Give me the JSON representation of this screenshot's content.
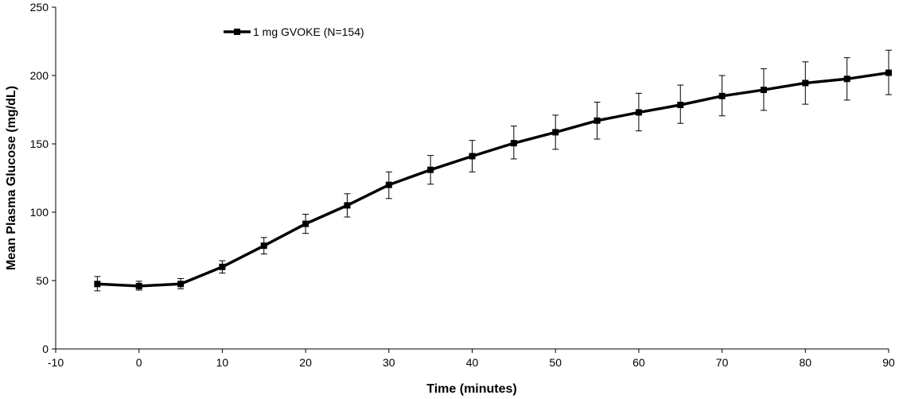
{
  "chart_data": {
    "type": "line",
    "title": "",
    "xlabel": "Time (minutes)",
    "ylabel": "Mean Plasma Glucose (mg/dL)",
    "xlim": [
      -10,
      90
    ],
    "ylim": [
      0,
      250
    ],
    "xticks": [
      "-10",
      "0",
      "10",
      "20",
      "30",
      "40",
      "50",
      "60",
      "70",
      "80",
      "90"
    ],
    "yticks": [
      "0",
      "50",
      "100",
      "150",
      "200",
      "250"
    ],
    "grid": false,
    "legend_position": "top-left",
    "series": [
      {
        "name": "1 mg GVOKE (N=154)",
        "color": "#000000",
        "marker": "square",
        "x": [
          -5,
          0,
          5,
          10,
          15,
          20,
          25,
          30,
          35,
          40,
          45,
          50,
          55,
          60,
          65,
          70,
          75,
          80,
          85,
          90
        ],
        "values": [
          47.5,
          46,
          47.5,
          60,
          75.5,
          91.5,
          105,
          120,
          131,
          141,
          150.5,
          158.5,
          167,
          173,
          178.5,
          185,
          189.5,
          194.5,
          197.5,
          202
        ],
        "error_low": [
          42.5,
          43,
          44,
          55.5,
          69.5,
          84.5,
          96.5,
          110,
          120.5,
          129.5,
          139,
          146,
          153.5,
          159.5,
          165,
          170.5,
          174.5,
          179,
          182,
          186
        ],
        "error_high": [
          53,
          49.5,
          51.5,
          64.5,
          81.5,
          98.5,
          113.5,
          129.5,
          141.5,
          152.5,
          163,
          171,
          180.5,
          187,
          193,
          200,
          205,
          210,
          213,
          218.5
        ]
      }
    ]
  }
}
